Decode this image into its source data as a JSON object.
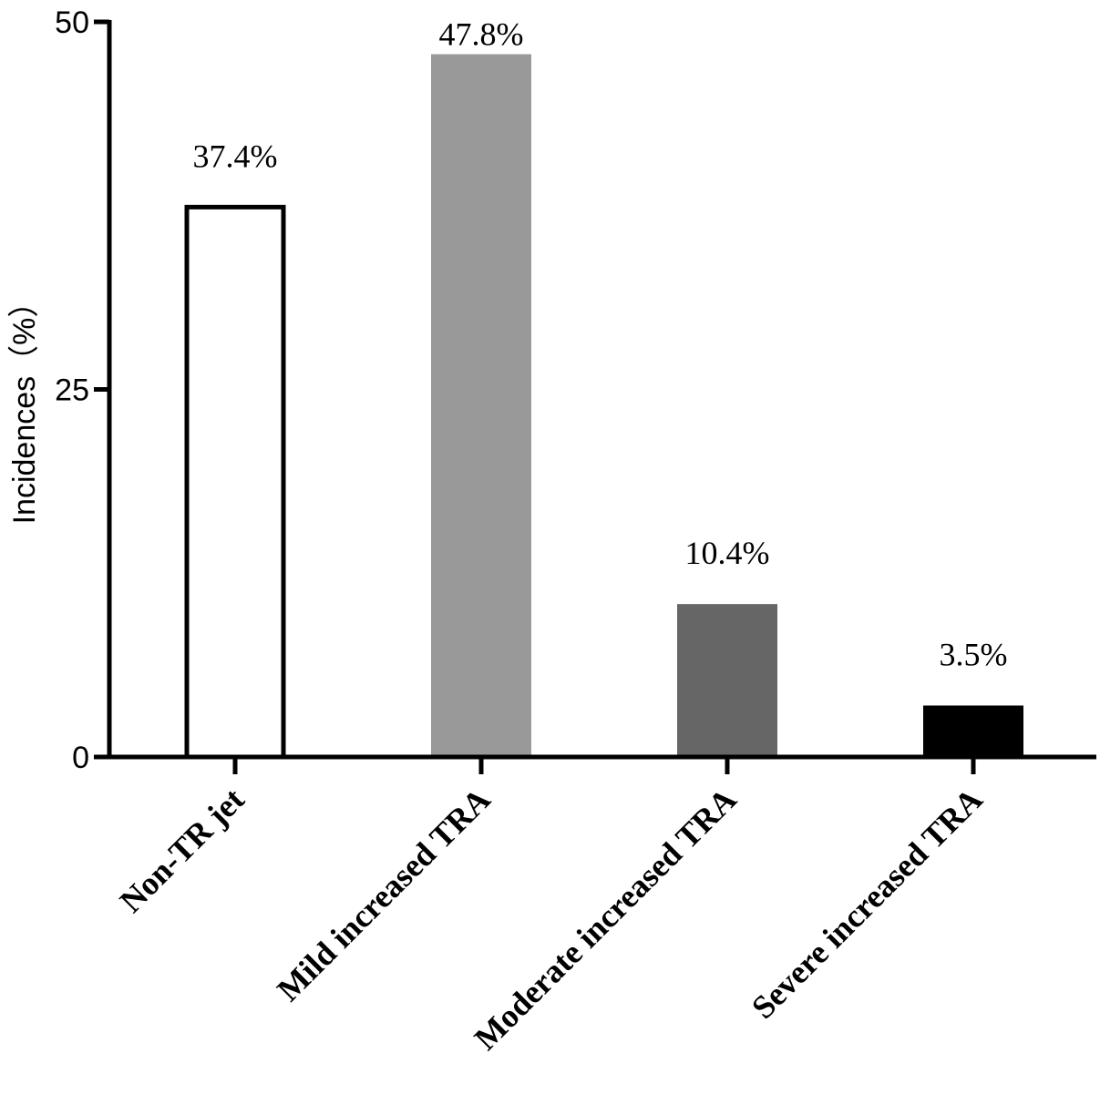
{
  "chart_data": {
    "type": "bar",
    "title": "",
    "xlabel": "",
    "ylabel": "Incidences（%）",
    "ylim": [
      0,
      50
    ],
    "yticks": [
      "0",
      "25",
      "50"
    ],
    "categories": [
      "Non-TR jet",
      "Mild increased TRA",
      "Moderate increased TRA",
      "Severe increased TRA"
    ],
    "values": [
      37.4,
      47.8,
      10.4,
      3.5
    ],
    "data_labels": [
      "37.4%",
      "47.8%",
      "10.4%",
      "3.5%"
    ],
    "bar_colors": [
      "#ffffff",
      "#999999",
      "#666666",
      "#000000"
    ],
    "grid": false,
    "legend": "none"
  }
}
